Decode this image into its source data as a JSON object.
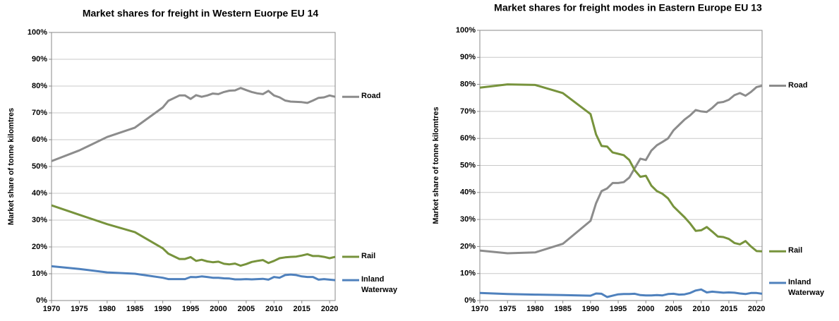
{
  "chart_data": [
    {
      "type": "line",
      "title": "Market shares for freight in Western Euorpe EU 14",
      "y_label": "Market share of tonne kilomtres",
      "x": [
        1970,
        1975,
        1980,
        1985,
        1990,
        1991,
        1993,
        1994,
        1995,
        1996,
        1997,
        1998,
        1999,
        2000,
        2001,
        2002,
        2003,
        2004,
        2005,
        2006,
        2007,
        2008,
        2009,
        2010,
        2011,
        2012,
        2013,
        2014,
        2015,
        2016,
        2017,
        2018,
        2019,
        2020,
        2021
      ],
      "series": [
        {
          "name": "Road",
          "color": "#8c8c8c",
          "values": [
            52,
            56,
            61,
            64.5,
            72,
            74.5,
            76.5,
            76.5,
            75.2,
            76.6,
            76,
            76.5,
            77.2,
            77,
            77.8,
            78.3,
            78.4,
            79.3,
            78.5,
            77.8,
            77.3,
            77,
            78.2,
            76.5,
            75.8,
            74.6,
            74.2,
            74.1,
            74,
            73.7,
            74.6,
            75.6,
            75.8,
            76.5,
            76
          ]
        },
        {
          "name": "Rail",
          "color": "#77933c",
          "values": [
            35.5,
            32,
            28.5,
            25.5,
            19.5,
            17.5,
            15.5,
            15.5,
            16.2,
            14.8,
            15.2,
            14.6,
            14.3,
            14.5,
            13.7,
            13.5,
            13.8,
            13,
            13.6,
            14.4,
            14.8,
            15.1,
            14,
            14.8,
            15.8,
            16.1,
            16.3,
            16.4,
            16.8,
            17.3,
            16.6,
            16.6,
            16.3,
            15.8,
            16.3
          ]
        },
        {
          "name": "Inland Waterway",
          "color": "#4f81bd",
          "values": [
            12.8,
            11.8,
            10.5,
            10,
            8.5,
            8,
            8,
            8,
            8.8,
            8.7,
            9,
            8.8,
            8.5,
            8.5,
            8.3,
            8.2,
            7.9,
            7.9,
            8,
            7.9,
            8,
            8.1,
            7.8,
            8.8,
            8.5,
            9.5,
            9.7,
            9.5,
            9,
            8.8,
            8.8,
            7.8,
            8,
            7.8,
            7.6
          ]
        }
      ],
      "xlim": [
        1970,
        2021
      ],
      "xticks": [
        1970,
        1975,
        1980,
        1985,
        1990,
        1995,
        2000,
        2005,
        2010,
        2015,
        2020
      ],
      "ylim": [
        0,
        100
      ],
      "yticks": [
        {
          "value": 0,
          "label": "0%"
        },
        {
          "value": 10,
          "label": "10%"
        },
        {
          "value": 20,
          "label": "20%"
        },
        {
          "value": 30,
          "label": "30%"
        },
        {
          "value": 40,
          "label": "40%"
        },
        {
          "value": 50,
          "label": "50%"
        },
        {
          "value": 60,
          "label": "60%"
        },
        {
          "value": 70,
          "label": "70%"
        },
        {
          "value": 80,
          "label": "80%"
        },
        {
          "value": 90,
          "label": "90%"
        },
        {
          "value": 100,
          "label": "100%"
        }
      ],
      "grid": true
    },
    {
      "type": "line",
      "title": "Market shares for freight modes in Eastern Europe EU 13",
      "y_label": "Market share of tonne kilomtres",
      "x": [
        1970,
        1975,
        1980,
        1985,
        1990,
        1991,
        1992,
        1993,
        1994,
        1995,
        1996,
        1997,
        1998,
        1999,
        2000,
        2001,
        2002,
        2003,
        2004,
        2005,
        2006,
        2007,
        2008,
        2009,
        2010,
        2011,
        2012,
        2013,
        2014,
        2015,
        2016,
        2017,
        2018,
        2019,
        2020,
        2021
      ],
      "series": [
        {
          "name": "Road",
          "color": "#8c8c8c",
          "values": [
            18.5,
            17.5,
            17.8,
            21,
            29.5,
            36,
            40.5,
            41.5,
            43.5,
            43.5,
            43.8,
            45.5,
            49,
            52.5,
            52,
            55.5,
            57.5,
            58.7,
            60,
            63,
            65,
            67,
            68.5,
            70.5,
            70,
            69.8,
            71.3,
            73.2,
            73.5,
            74.3,
            76,
            76.8,
            75.8,
            77.2,
            79,
            79.5
          ]
        },
        {
          "name": "Rail",
          "color": "#77933c",
          "values": [
            78.8,
            80,
            79.8,
            76.8,
            69,
            61.5,
            57.2,
            57,
            54.8,
            54.3,
            53.8,
            52,
            48.2,
            45.8,
            46.2,
            42.5,
            40.5,
            39.5,
            37.8,
            34.8,
            32.8,
            30.8,
            28.5,
            25.8,
            26,
            27.2,
            25.5,
            23.7,
            23.5,
            22.8,
            21.3,
            20.8,
            22,
            20,
            18.3,
            18.2
          ]
        },
        {
          "name": "Inland Waterway",
          "color": "#4f81bd",
          "values": [
            2.8,
            2.4,
            2.2,
            2,
            1.8,
            2.6,
            2.5,
            1.3,
            1.8,
            2.3,
            2.4,
            2.4,
            2.5,
            2,
            1.9,
            1.9,
            2,
            1.9,
            2.4,
            2.5,
            2.2,
            2.3,
            2.8,
            3.7,
            4.1,
            3,
            3.3,
            3.1,
            2.9,
            3,
            2.9,
            2.6,
            2.4,
            2.8,
            2.8,
            2.5
          ]
        }
      ],
      "xlim": [
        1970,
        2021
      ],
      "xticks": [
        1970,
        1975,
        1980,
        1985,
        1990,
        1995,
        2000,
        2005,
        2010,
        2015,
        2020
      ],
      "ylim": [
        0,
        100
      ],
      "yticks": [
        {
          "value": 0,
          "label": "0%"
        },
        {
          "value": 10,
          "label": "10%"
        },
        {
          "value": 20,
          "label": "20%"
        },
        {
          "value": 30,
          "label": "30%"
        },
        {
          "value": 40,
          "label": "40%"
        },
        {
          "value": 50,
          "label": "50%"
        },
        {
          "value": 60,
          "label": "60%"
        },
        {
          "value": 70,
          "label": "70%"
        },
        {
          "value": 80,
          "label": "80%"
        },
        {
          "value": 90,
          "label": "90%"
        },
        {
          "value": 100,
          "label": "100%"
        }
      ],
      "grid": true
    }
  ]
}
